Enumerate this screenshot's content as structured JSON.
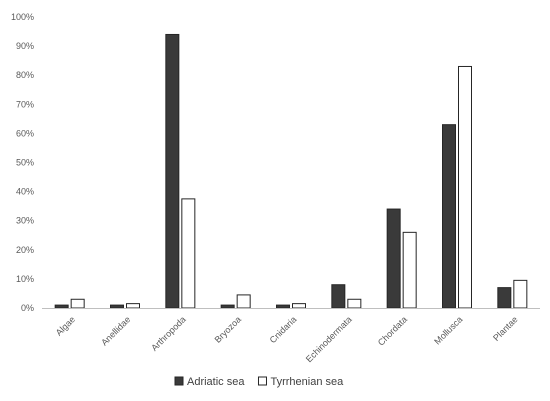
{
  "chart_data": {
    "type": "bar",
    "categories": [
      "Algae",
      "Anellidae",
      "Arthropoda",
      "Bryozoa",
      "Cnidaria",
      "Echinodermata",
      "Chordata",
      "Mollusca",
      "Plantae"
    ],
    "series": [
      {
        "name": "Adriatic sea",
        "color": "#3a3a3a",
        "values": [
          1,
          1,
          94,
          1,
          1,
          8,
          34,
          63,
          7
        ]
      },
      {
        "name": "Tyrrhenian sea",
        "color": "#ffffff",
        "values": [
          3,
          1.5,
          37.5,
          4.5,
          1.5,
          3,
          26,
          83,
          9.5
        ]
      }
    ],
    "ylim": [
      0,
      100
    ],
    "yticks": [
      "0%",
      "10%",
      "20%",
      "30%",
      "40%",
      "50%",
      "60%",
      "70%",
      "80%",
      "90%",
      "100%"
    ],
    "legend_position": "bottom",
    "grid": false
  }
}
